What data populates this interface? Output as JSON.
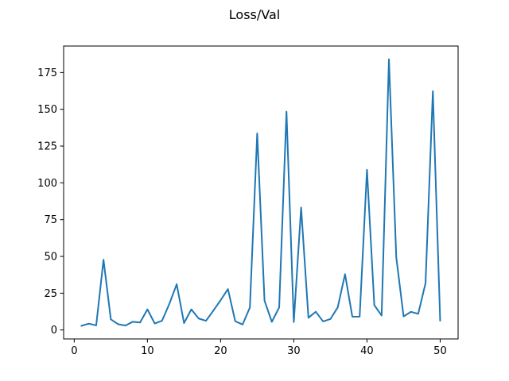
{
  "chart_data": {
    "type": "line",
    "title": "Loss/Val",
    "xlabel": "",
    "ylabel": "",
    "xlim": [
      -1.45,
      52.45
    ],
    "ylim": [
      -6.1,
      193.0
    ],
    "xticks": [
      0,
      10,
      20,
      30,
      40,
      50
    ],
    "yticks": [
      0,
      25,
      50,
      75,
      100,
      125,
      150,
      175
    ],
    "grid": false,
    "legend": "none",
    "series": [
      {
        "color": "#1f77b4",
        "x": [
          1,
          2,
          3,
          4,
          5,
          6,
          7,
          8,
          9,
          10,
          11,
          12,
          13,
          14,
          15,
          16,
          17,
          18,
          19,
          20,
          21,
          22,
          23,
          24,
          25,
          26,
          27,
          28,
          29,
          30,
          31,
          32,
          33,
          34,
          35,
          36,
          37,
          38,
          39,
          40,
          41,
          42,
          43,
          44,
          45,
          46,
          47,
          48,
          49,
          50
        ],
        "values": [
          2.8,
          4.3,
          3.1,
          47.7,
          7.2,
          3.9,
          3.0,
          5.6,
          5.1,
          14.0,
          4.4,
          6.3,
          17.8,
          31.1,
          4.7,
          14.0,
          7.8,
          6.2,
          13.1,
          20.2,
          27.8,
          5.9,
          3.7,
          15.3,
          133.6,
          19.9,
          5.5,
          15.3,
          148.4,
          5.4,
          83.2,
          8.3,
          12.4,
          5.8,
          7.4,
          15.3,
          37.9,
          9.0,
          9.1,
          108.9,
          16.9,
          9.8,
          184.0,
          49.5,
          9.2,
          12.3,
          11.0,
          31.8,
          162.3,
          6.4
        ]
      }
    ]
  }
}
